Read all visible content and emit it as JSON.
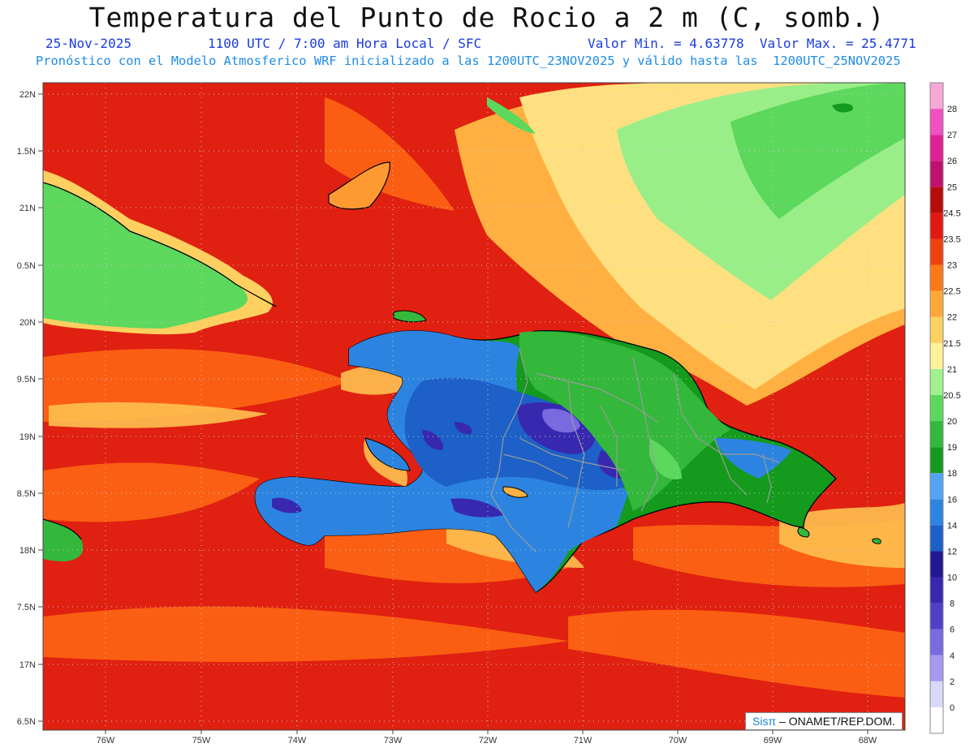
{
  "header": {
    "title": "Temperatura del Punto de Rocio a 2 m (C, somb.)",
    "date": "25-Nov-2025",
    "time": "1100 UTC / 7:00 am Hora Local / SFC",
    "min_max": "Valor Min. = 4.63778  Valor Max. = 25.4771",
    "model": "Pronóstico con el Modelo Atmosferico WRF inicializado a las 1200UTC_23NOV2025 y válido hasta las  1200UTC_25NOV2025"
  },
  "map": {
    "lat_labels": [
      "22N",
      "1.5N",
      "21N",
      "0.5N",
      "20N",
      "9.5N",
      "19N",
      "8.5N",
      "18N",
      "7.5N",
      "17N",
      "6.5N"
    ],
    "lon_labels": [
      "76W",
      "75W",
      "74W",
      "73W",
      "72W",
      "71W",
      "70W",
      "69W",
      "68W"
    ],
    "credit_sis": "Sisπ",
    "credit_rest": " – ONAMET/REP.DOM."
  },
  "legend": {
    "levels": [
      "0",
      "2",
      "4",
      "6",
      "8",
      "10",
      "12",
      "14",
      "16",
      "18",
      "19",
      "20",
      "20.5",
      "21",
      "21.5",
      "22",
      "22.5",
      "23",
      "23.5",
      "24.5",
      "25",
      "26",
      "27",
      "28"
    ],
    "colors": [
      "#ffffff",
      "#d8d8f8",
      "#a898f0",
      "#7a6ae0",
      "#5040c8",
      "#3828b0",
      "#201890",
      "#1c60c8",
      "#2c84e0",
      "#54a4f4",
      "#149a1c",
      "#34b83c",
      "#5cd85c",
      "#a0f08c",
      "#fff09a",
      "#ffd060",
      "#ffa838",
      "#ff7818",
      "#f04010",
      "#e01a10",
      "#b80a08",
      "#c01070",
      "#e02098",
      "#f050c0",
      "#f8a8d8"
    ]
  },
  "colors": {
    "sea_red": "#e82814",
    "orange": "#ff7a1a",
    "yellow": "#ffd060",
    "green": "#34b83c",
    "blue": "#2c84e0",
    "purple": "#3828b0"
  }
}
